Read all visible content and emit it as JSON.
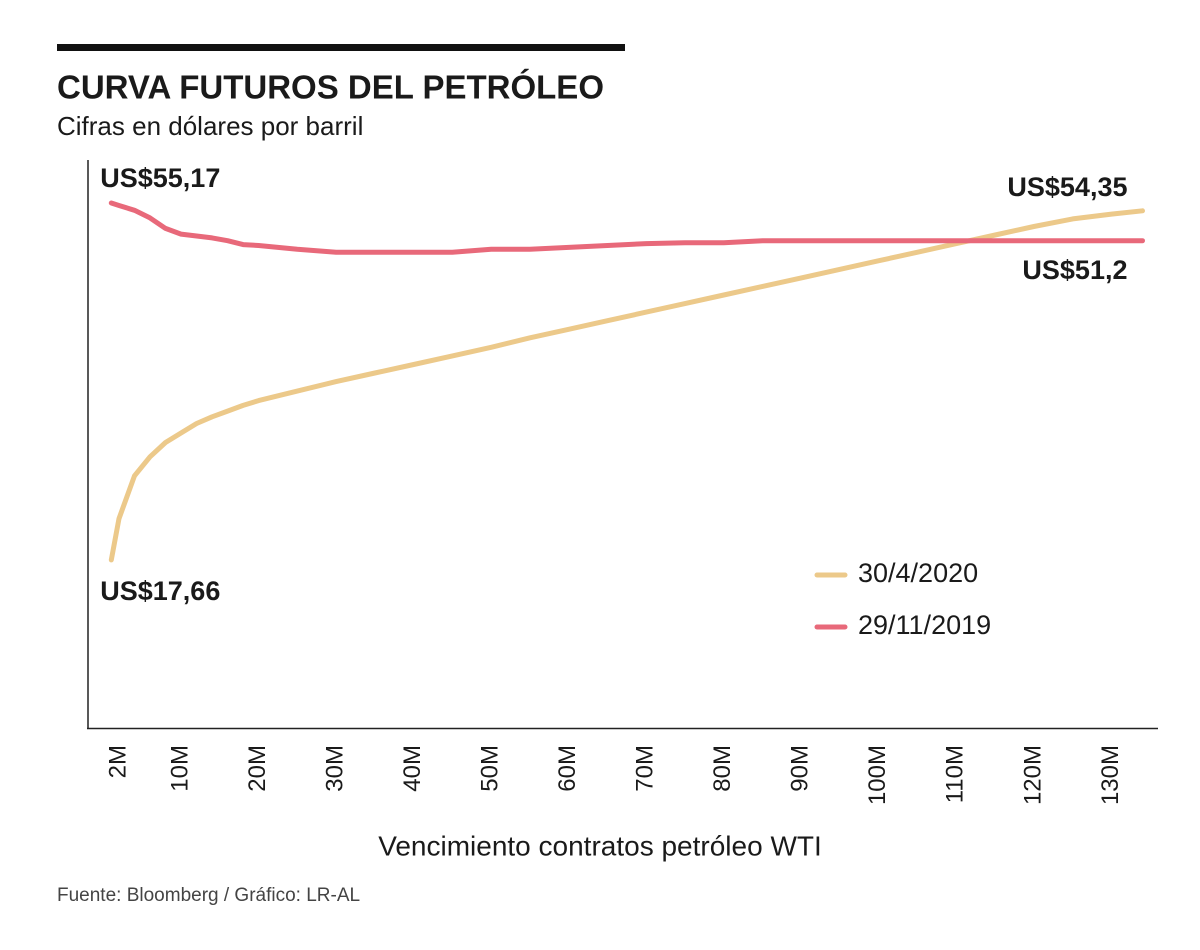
{
  "chart_data": {
    "type": "line",
    "title": "CURVA FUTUROS DEL PETRÓLEO",
    "subtitle": "Cifras en dólares por barril",
    "x_label": "Vencimiento contratos petróleo WTI",
    "source": "Fuente: Bloomberg / Gráfico: LR-AL",
    "x": [
      1,
      2,
      4,
      6,
      8,
      10,
      12,
      14,
      16,
      18,
      20,
      25,
      30,
      35,
      40,
      45,
      50,
      55,
      60,
      65,
      70,
      75,
      80,
      85,
      90,
      95,
      100,
      105,
      110,
      115,
      120,
      125,
      130,
      134
    ],
    "series": [
      {
        "name": "30/4/2020",
        "color": "#ecc98a",
        "values": [
          17.66,
          22.0,
          26.5,
          28.5,
          30.0,
          31.0,
          32.0,
          32.7,
          33.3,
          33.9,
          34.4,
          35.4,
          36.4,
          37.3,
          38.2,
          39.1,
          40.0,
          41.0,
          41.9,
          42.8,
          43.7,
          44.6,
          45.5,
          46.4,
          47.3,
          48.2,
          49.1,
          50.0,
          50.9,
          51.8,
          52.7,
          53.5,
          54.0,
          54.35
        ]
      },
      {
        "name": "29/11/2019",
        "color": "#e8697a",
        "values": [
          55.17,
          54.9,
          54.4,
          53.6,
          52.5,
          51.9,
          51.7,
          51.5,
          51.2,
          50.8,
          50.7,
          50.3,
          50.0,
          50.0,
          50.0,
          50.0,
          50.3,
          50.3,
          50.5,
          50.7,
          50.9,
          51.0,
          51.0,
          51.2,
          51.2,
          51.2,
          51.2,
          51.2,
          51.2,
          51.2,
          51.2,
          51.2,
          51.2,
          51.2
        ]
      }
    ],
    "annotations": [
      {
        "text": "US$55,17",
        "x": 1,
        "value": 55.17
      },
      {
        "text": "US$54,35",
        "x": 134,
        "value": 54.35
      },
      {
        "text": "US$51,2",
        "x": 134,
        "value": 51.2
      },
      {
        "text": "US$17,66",
        "x": 1,
        "value": 17.66
      }
    ],
    "xlim": [
      -2,
      136
    ],
    "ylim": [
      0,
      60
    ],
    "xticks": [
      {
        "value": 2,
        "label": "2M"
      },
      {
        "value": 10,
        "label": "10M"
      },
      {
        "value": 20,
        "label": "20M"
      },
      {
        "value": 30,
        "label": "30M"
      },
      {
        "value": 40,
        "label": "40M"
      },
      {
        "value": 50,
        "label": "50M"
      },
      {
        "value": 60,
        "label": "60M"
      },
      {
        "value": 70,
        "label": "70M"
      },
      {
        "value": 80,
        "label": "80M"
      },
      {
        "value": 90,
        "label": "90M"
      },
      {
        "value": 100,
        "label": "100M"
      },
      {
        "value": 110,
        "label": "110M"
      },
      {
        "value": 120,
        "label": "120M"
      },
      {
        "value": 130,
        "label": "130M"
      }
    ],
    "grid": false
  }
}
